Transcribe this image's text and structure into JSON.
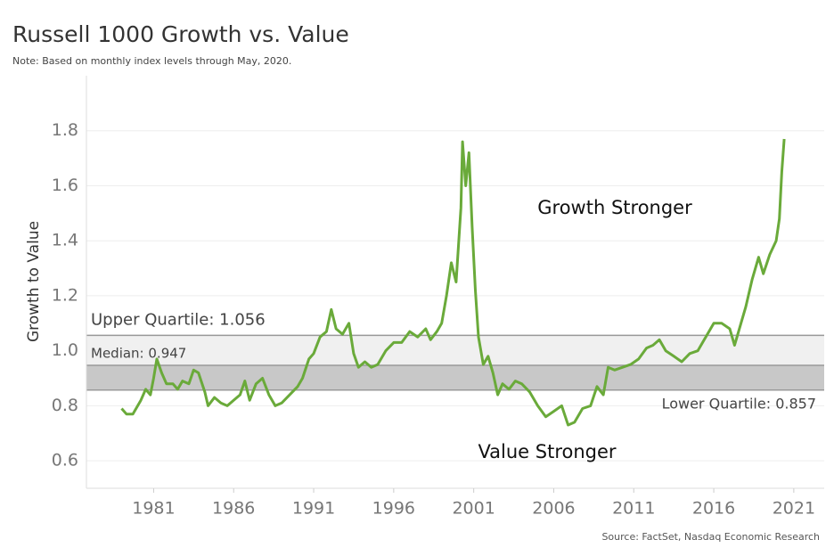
{
  "chart_data": {
    "type": "line",
    "title": "Russell 1000 Growth vs. Value",
    "subtitle": "Note: Based on monthly index levels through May, 2020.",
    "y_label": "Growth to Value",
    "source": "Source: FactSet, Nasdaq Economic Research",
    "annotations": [
      "Growth Stronger",
      "Value Stronger"
    ],
    "reference_lines": [
      {
        "label": "Upper Quartile: 1.056",
        "value": 1.056
      },
      {
        "label": "Median: 0.947",
        "value": 0.947
      },
      {
        "label": "Lower Quartile: 0.857",
        "value": 0.857
      }
    ],
    "x": [
      1979.0,
      1979.3,
      1979.7,
      1980.2,
      1980.5,
      1980.8,
      1981.0,
      1981.2,
      1981.5,
      1981.8,
      1982.2,
      1982.5,
      1982.8,
      1983.2,
      1983.5,
      1983.8,
      1984.2,
      1984.4,
      1984.8,
      1985.2,
      1985.6,
      1986.0,
      1986.4,
      1986.7,
      1987.0,
      1987.4,
      1987.8,
      1988.2,
      1988.6,
      1989.0,
      1989.5,
      1990.0,
      1990.3,
      1990.7,
      1991.0,
      1991.4,
      1991.8,
      1992.1,
      1992.4,
      1992.8,
      1993.2,
      1993.5,
      1993.8,
      1994.2,
      1994.6,
      1995.0,
      1995.5,
      1996.0,
      1996.5,
      1997.0,
      1997.5,
      1998.0,
      1998.3,
      1998.7,
      1999.0,
      1999.3,
      1999.6,
      1999.9,
      2000.2,
      2000.3,
      2000.5,
      2000.7,
      2000.9,
      2001.1,
      2001.3,
      2001.6,
      2001.9,
      2002.2,
      2002.5,
      2002.8,
      2003.2,
      2003.6,
      2004.0,
      2004.5,
      2005.0,
      2005.5,
      2006.0,
      2006.5,
      2006.9,
      2007.3,
      2007.8,
      2008.3,
      2008.7,
      2009.1,
      2009.4,
      2009.8,
      2010.3,
      2010.8,
      2011.3,
      2011.8,
      2012.2,
      2012.6,
      2013.0,
      2013.5,
      2014.0,
      2014.5,
      2015.0,
      2015.5,
      2016.0,
      2016.5,
      2017.0,
      2017.3,
      2017.7,
      2018.0,
      2018.4,
      2018.8,
      2019.1,
      2019.5,
      2019.9,
      2020.1,
      2020.25,
      2020.4
    ],
    "series": [
      {
        "name": "Growth to Value",
        "color": "#6aaa3a",
        "values": [
          0.79,
          0.77,
          0.77,
          0.82,
          0.86,
          0.84,
          0.9,
          0.97,
          0.92,
          0.88,
          0.88,
          0.86,
          0.89,
          0.88,
          0.93,
          0.92,
          0.85,
          0.8,
          0.83,
          0.81,
          0.8,
          0.82,
          0.84,
          0.89,
          0.82,
          0.88,
          0.9,
          0.84,
          0.8,
          0.81,
          0.84,
          0.87,
          0.9,
          0.97,
          0.99,
          1.05,
          1.07,
          1.15,
          1.08,
          1.06,
          1.1,
          0.99,
          0.94,
          0.96,
          0.94,
          0.95,
          1.0,
          1.03,
          1.03,
          1.07,
          1.05,
          1.08,
          1.04,
          1.07,
          1.1,
          1.2,
          1.32,
          1.25,
          1.52,
          1.76,
          1.6,
          1.72,
          1.45,
          1.22,
          1.05,
          0.95,
          0.98,
          0.92,
          0.84,
          0.88,
          0.86,
          0.89,
          0.88,
          0.85,
          0.8,
          0.76,
          0.78,
          0.8,
          0.73,
          0.74,
          0.79,
          0.8,
          0.87,
          0.84,
          0.94,
          0.93,
          0.94,
          0.95,
          0.97,
          1.01,
          1.02,
          1.04,
          1.0,
          0.98,
          0.96,
          0.99,
          1.0,
          1.05,
          1.1,
          1.1,
          1.08,
          1.02,
          1.1,
          1.16,
          1.26,
          1.34,
          1.28,
          1.35,
          1.4,
          1.48,
          1.65,
          1.77
        ]
      }
    ],
    "xlim": [
      1976.8,
      2022.9
    ],
    "xticks": [
      1981,
      1986,
      1991,
      1996,
      2001,
      2006,
      2011,
      2016,
      2021
    ],
    "ylim": [
      0.5,
      2.0
    ],
    "yticks": [
      0.6,
      0.8,
      {
        "value": 1,
        "label": "1.0"
      },
      1.2,
      1.4,
      1.6,
      1.8
    ],
    "grid": true
  }
}
